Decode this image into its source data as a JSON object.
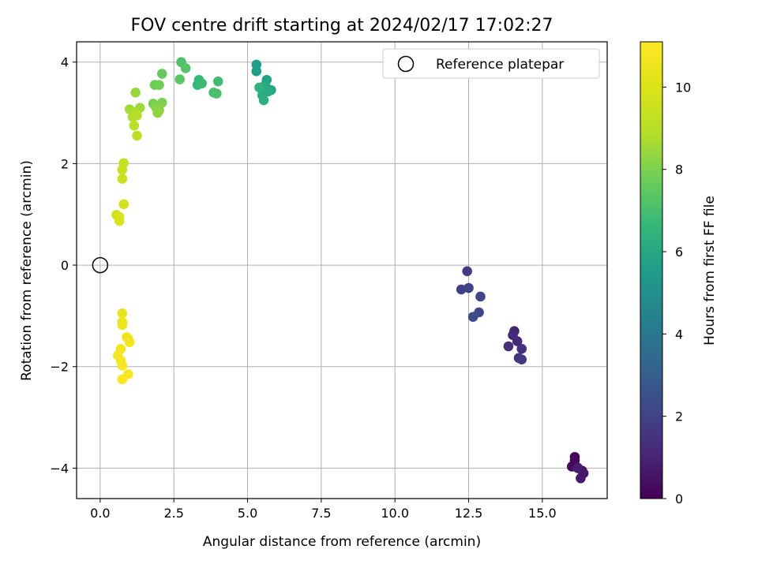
{
  "chart_data": {
    "type": "scatter",
    "title": "FOV centre drift starting at 2024/02/17 17:02:27",
    "xlabel": "Angular distance from reference (arcmin)",
    "ylabel": "Rotation from reference (arcmin)",
    "xlim": [
      -0.8,
      17.2
    ],
    "ylim": [
      -4.6,
      4.4
    ],
    "xticks": [
      0.0,
      2.5,
      5.0,
      7.5,
      10.0,
      12.5,
      15.0
    ],
    "xtick_labels": [
      "0.0",
      "2.5",
      "5.0",
      "7.5",
      "10.0",
      "12.5",
      "15.0"
    ],
    "yticks": [
      -4,
      -2,
      0,
      2,
      4
    ],
    "ytick_labels": [
      "−4",
      "−2",
      "0",
      "2",
      "4"
    ],
    "grid": true,
    "legend": {
      "placement": "top-right",
      "entries": [
        "Reference platepar"
      ]
    },
    "reference_point": {
      "x": 0,
      "y": 0
    },
    "colorbar": {
      "label": "Hours from first FF file",
      "colormap": "viridis",
      "range": [
        0,
        11.1
      ],
      "ticks": [
        0,
        2,
        4,
        6,
        8,
        10
      ],
      "tick_labels": [
        "0",
        "2",
        "4",
        "6",
        "8",
        "10"
      ]
    },
    "series": [
      {
        "points": [
          {
            "x": 16.1,
            "y": -3.78,
            "t": 0.1
          },
          {
            "x": 16.1,
            "y": -3.85,
            "t": 0.2
          },
          {
            "x": 16.0,
            "y": -3.97,
            "t": 0.3
          },
          {
            "x": 16.2,
            "y": -3.99,
            "t": 0.4
          },
          {
            "x": 16.35,
            "y": -4.05,
            "t": 0.5
          },
          {
            "x": 16.4,
            "y": -4.1,
            "t": 0.6
          },
          {
            "x": 16.3,
            "y": -4.2,
            "t": 0.7
          },
          {
            "x": 16.2,
            "y": -4.0,
            "t": 0.8
          },
          {
            "x": 14.05,
            "y": -1.3,
            "t": 1.0
          },
          {
            "x": 14.0,
            "y": -1.38,
            "t": 1.1
          },
          {
            "x": 14.15,
            "y": -1.5,
            "t": 1.2
          },
          {
            "x": 13.85,
            "y": -1.6,
            "t": 1.3
          },
          {
            "x": 14.3,
            "y": -1.65,
            "t": 1.4
          },
          {
            "x": 14.2,
            "y": -1.83,
            "t": 1.5
          },
          {
            "x": 14.3,
            "y": -1.86,
            "t": 1.6
          },
          {
            "x": 12.45,
            "y": -0.12,
            "t": 1.8
          },
          {
            "x": 12.25,
            "y": -0.48,
            "t": 1.9
          },
          {
            "x": 12.5,
            "y": -0.45,
            "t": 2.0
          },
          {
            "x": 12.9,
            "y": -0.62,
            "t": 2.1
          },
          {
            "x": 12.85,
            "y": -0.93,
            "t": 2.2
          },
          {
            "x": 12.65,
            "y": -1.02,
            "t": 2.3
          },
          {
            "x": 5.3,
            "y": 3.95,
            "t": 5.5
          },
          {
            "x": 5.3,
            "y": 3.82,
            "t": 5.6
          },
          {
            "x": 5.65,
            "y": 3.65,
            "t": 5.7
          },
          {
            "x": 5.55,
            "y": 3.5,
            "t": 5.8
          },
          {
            "x": 5.8,
            "y": 3.45,
            "t": 5.9
          },
          {
            "x": 5.6,
            "y": 3.55,
            "t": 6.0
          },
          {
            "x": 5.7,
            "y": 3.42,
            "t": 6.1
          },
          {
            "x": 5.5,
            "y": 3.35,
            "t": 6.2
          },
          {
            "x": 5.55,
            "y": 3.25,
            "t": 6.3
          },
          {
            "x": 5.4,
            "y": 3.5,
            "t": 6.4
          },
          {
            "x": 3.35,
            "y": 3.65,
            "t": 6.6
          },
          {
            "x": 3.3,
            "y": 3.55,
            "t": 6.7
          },
          {
            "x": 3.45,
            "y": 3.58,
            "t": 6.8
          },
          {
            "x": 4.0,
            "y": 3.62,
            "t": 6.9
          },
          {
            "x": 3.85,
            "y": 3.4,
            "t": 7.0
          },
          {
            "x": 3.95,
            "y": 3.38,
            "t": 7.1
          },
          {
            "x": 2.75,
            "y": 4.0,
            "t": 7.2
          },
          {
            "x": 2.9,
            "y": 3.88,
            "t": 7.3
          },
          {
            "x": 2.7,
            "y": 3.66,
            "t": 7.4
          },
          {
            "x": 2.1,
            "y": 3.77,
            "t": 7.6
          },
          {
            "x": 1.85,
            "y": 3.55,
            "t": 7.7
          },
          {
            "x": 2.0,
            "y": 3.55,
            "t": 7.8
          },
          {
            "x": 1.8,
            "y": 3.18,
            "t": 7.9
          },
          {
            "x": 2.1,
            "y": 3.2,
            "t": 8.0
          },
          {
            "x": 1.9,
            "y": 3.1,
            "t": 8.1
          },
          {
            "x": 2.0,
            "y": 3.05,
            "t": 8.2
          },
          {
            "x": 1.95,
            "y": 3.0,
            "t": 8.3
          },
          {
            "x": 1.2,
            "y": 3.4,
            "t": 8.4
          },
          {
            "x": 1.35,
            "y": 3.1,
            "t": 8.5
          },
          {
            "x": 1.0,
            "y": 3.07,
            "t": 8.6
          },
          {
            "x": 1.2,
            "y": 3.02,
            "t": 8.7
          },
          {
            "x": 1.1,
            "y": 2.92,
            "t": 8.8
          },
          {
            "x": 1.25,
            "y": 2.95,
            "t": 8.9
          },
          {
            "x": 1.15,
            "y": 2.75,
            "t": 9.0
          },
          {
            "x": 1.25,
            "y": 2.55,
            "t": 9.1
          },
          {
            "x": 0.8,
            "y": 2.01,
            "t": 9.3
          },
          {
            "x": 0.75,
            "y": 1.88,
            "t": 9.4
          },
          {
            "x": 0.75,
            "y": 1.7,
            "t": 9.5
          },
          {
            "x": 0.8,
            "y": 1.2,
            "t": 9.6
          },
          {
            "x": 0.55,
            "y": 0.99,
            "t": 9.7
          },
          {
            "x": 0.65,
            "y": 0.95,
            "t": 9.8
          },
          {
            "x": 0.65,
            "y": 0.87,
            "t": 9.9
          },
          {
            "x": 0.75,
            "y": -0.95,
            "t": 10.4
          },
          {
            "x": 0.75,
            "y": -1.12,
            "t": 10.5
          },
          {
            "x": 0.75,
            "y": -1.18,
            "t": 10.55
          },
          {
            "x": 0.9,
            "y": -1.42,
            "t": 10.6
          },
          {
            "x": 0.95,
            "y": -1.45,
            "t": 10.65
          },
          {
            "x": 1.0,
            "y": -1.52,
            "t": 10.7
          },
          {
            "x": 0.7,
            "y": -1.65,
            "t": 10.75
          },
          {
            "x": 0.6,
            "y": -1.78,
            "t": 10.8
          },
          {
            "x": 0.7,
            "y": -1.88,
            "t": 10.85
          },
          {
            "x": 0.75,
            "y": -1.98,
            "t": 10.9
          },
          {
            "x": 0.95,
            "y": -2.15,
            "t": 10.95
          },
          {
            "x": 0.75,
            "y": -2.25,
            "t": 11.0
          }
        ]
      }
    ]
  }
}
